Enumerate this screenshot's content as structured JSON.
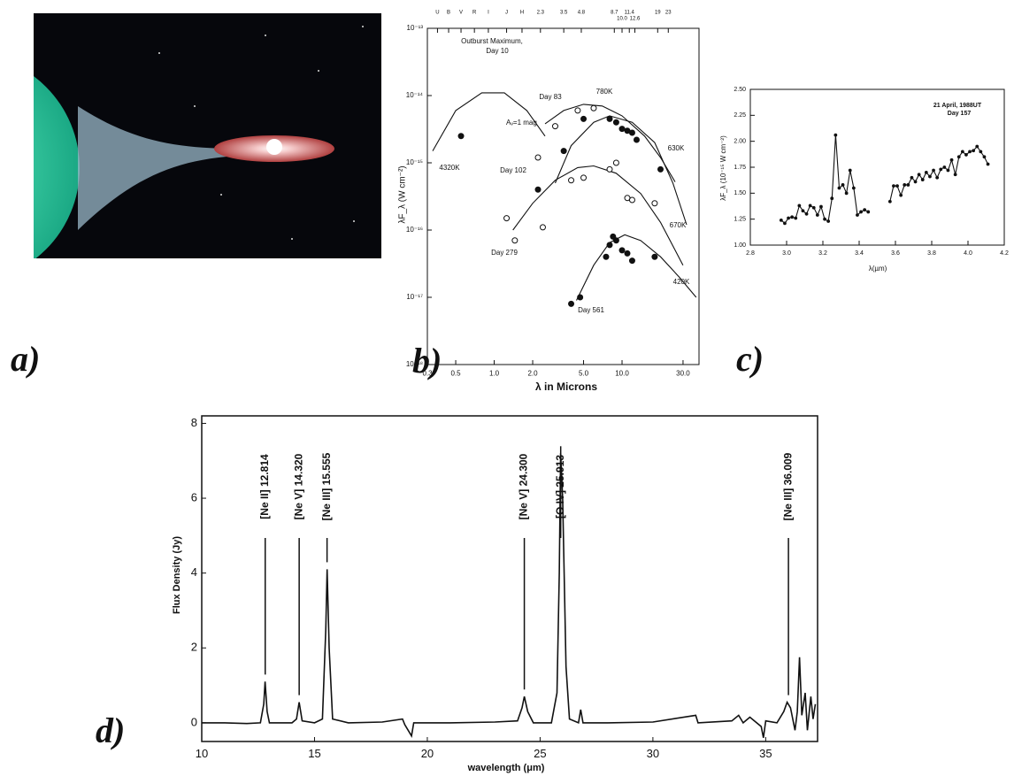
{
  "panel_labels": [
    "a)",
    "b)",
    "c)",
    "d)"
  ],
  "chart_data": [
    {
      "type": "scatter",
      "xscale": "log",
      "yscale": "log",
      "xlabel": "λ in Microns",
      "ylabel": "λF_λ (W cm⁻²)",
      "xlim": [
        0.3,
        40
      ],
      "ylim": [
        1e-18,
        1e-13
      ],
      "xticks": [
        0.3,
        0.5,
        {
          "value": 1,
          "label": "1.0"
        },
        {
          "value": 2,
          "label": "2.0"
        },
        {
          "value": 5,
          "label": "5.0"
        },
        {
          "value": 10,
          "label": "10.0"
        },
        {
          "value": 30,
          "label": "30.0"
        }
      ],
      "yticks": [
        {
          "value": 1e-18,
          "label": "10⁻¹⁸"
        },
        {
          "value": 1e-17,
          "label": "10⁻¹⁷"
        },
        {
          "value": 1e-16,
          "label": "10⁻¹⁶"
        },
        {
          "value": 1e-15,
          "label": "10⁻¹⁵"
        },
        {
          "value": 1e-14,
          "label": "10⁻¹⁴"
        },
        {
          "value": 1e-13,
          "label": "10⁻¹³"
        }
      ],
      "x2ticks": [
        {
          "value": 0.36,
          "label": "U"
        },
        {
          "value": 0.44,
          "label": "B"
        },
        {
          "value": 0.55,
          "label": "V"
        },
        {
          "value": 0.7,
          "label": "R"
        },
        {
          "value": 0.9,
          "label": "I"
        },
        {
          "value": 1.25,
          "label": "J"
        },
        {
          "value": 1.65,
          "label": "H"
        },
        2.3,
        3.5,
        4.8,
        8.7,
        {
          "value": 10,
          "label": "10.0"
        },
        11.4,
        12.6,
        19,
        23
      ],
      "annotations": [
        "Outburst Maximum,",
        "Day 10",
        "Day 83",
        "780K",
        "Aᵥ=1 mag",
        "4320K",
        "Day 102",
        "630K",
        "670K",
        "Day 279",
        "420K",
        "Day 561"
      ],
      "series": [
        {
          "marker": "none",
          "color": "#111",
          "x": [
            0.33,
            0.5,
            0.8,
            1.2,
            1.8,
            2.5
          ],
          "values": [
            1.5e-15,
            6e-15,
            1.1e-14,
            1.1e-14,
            6e-15,
            2.5e-15
          ]
        },
        {
          "marker": "none",
          "color": "#111",
          "x": [
            2.5,
            3.5,
            5,
            7,
            10,
            15,
            20,
            26
          ],
          "values": [
            3.8e-15,
            6e-15,
            7.4e-15,
            7e-15,
            5e-15,
            2.5e-15,
            1.2e-15,
            5.2e-16
          ]
        },
        {
          "marker": "none",
          "color": "#111",
          "x": [
            3,
            4,
            6,
            8,
            12,
            18,
            25,
            32
          ],
          "values": [
            5e-16,
            1.8e-15,
            4e-15,
            5e-15,
            4e-15,
            2e-15,
            5e-16,
            1.2e-16
          ]
        },
        {
          "marker": "none",
          "color": "#111",
          "x": [
            1.4,
            2,
            3,
            4.5,
            6,
            9,
            14,
            20,
            30
          ],
          "values": [
            1e-16,
            2.5e-16,
            5.5e-16,
            8.5e-16,
            9e-16,
            7e-16,
            3.5e-16,
            1.3e-16,
            3e-17
          ]
        },
        {
          "marker": "none",
          "color": "#111",
          "x": [
            4.4,
            6,
            8,
            10.5,
            14,
            20,
            28,
            38
          ],
          "values": [
            9e-18,
            3e-17,
            6.5e-17,
            8.5e-17,
            7e-17,
            4e-17,
            2e-17,
            1e-17
          ]
        },
        {
          "marker": "filled",
          "color": "#111",
          "x": [
            0.55
          ],
          "values": [
            2.5e-15
          ]
        },
        {
          "marker": "open",
          "color": "#111",
          "x": [
            2.2,
            3,
            4.5,
            6
          ],
          "values": [
            1.2e-15,
            3.5e-15,
            6e-15,
            6.5e-15
          ]
        },
        {
          "marker": "filled",
          "color": "#111",
          "x": [
            2.2,
            3.5,
            5,
            8,
            9,
            10,
            11,
            12,
            13,
            20
          ],
          "values": [
            4e-16,
            1.5e-15,
            4.5e-15,
            4.5e-15,
            4e-15,
            3.2e-15,
            3e-15,
            2.8e-15,
            2.2e-15,
            8e-16
          ]
        },
        {
          "marker": "open",
          "color": "#111",
          "x": [
            1.25,
            1.45,
            2.4,
            4,
            5,
            8,
            9,
            11,
            12,
            18
          ],
          "values": [
            1.5e-16,
            7e-17,
            1.1e-16,
            5.5e-16,
            6e-16,
            8e-16,
            1e-15,
            3e-16,
            2.8e-16,
            2.5e-16
          ]
        },
        {
          "marker": "filled",
          "color": "#111",
          "x": [
            4,
            4.7,
            7.5,
            8,
            8.5,
            9,
            10,
            11,
            12,
            18
          ],
          "values": [
            8e-18,
            1e-17,
            4e-17,
            6e-17,
            8e-17,
            7e-17,
            5e-17,
            4.5e-17,
            3.5e-17,
            4e-17
          ]
        }
      ]
    },
    {
      "type": "line",
      "xlabel": "λ(µm)",
      "ylabel": "λF_λ (10⁻¹⁵ W cm⁻²)",
      "xlim": [
        2.8,
        4.2
      ],
      "ylim": [
        1,
        2.5
      ],
      "xticks": [
        2.8,
        {
          "value": 3,
          "label": "3.0"
        },
        3.2,
        3.4,
        3.6,
        3.8,
        {
          "value": 4,
          "label": "4.0"
        },
        4.2
      ],
      "yticks": [
        {
          "value": 1,
          "label": "1.00"
        },
        1.25,
        {
          "value": 1.5,
          "label": "1.50"
        },
        1.75,
        {
          "value": 2,
          "label": "2.00"
        },
        2.25,
        {
          "value": 2.5,
          "label": "2.50"
        }
      ],
      "annotations": [
        "21 April, 1988UT",
        "Day 157"
      ],
      "x": [
        2.97,
        2.99,
        3.01,
        3.03,
        3.05,
        3.07,
        3.09,
        3.11,
        3.13,
        3.15,
        3.17,
        3.19,
        3.21,
        3.23,
        3.25,
        3.27,
        3.29,
        3.31,
        3.33,
        3.35,
        3.37,
        3.39,
        3.41,
        3.43,
        3.45,
        null,
        3.57,
        3.59,
        3.61,
        3.63,
        3.65,
        3.67,
        3.69,
        3.71,
        3.73,
        3.75,
        3.77,
        3.79,
        3.81,
        3.83,
        3.85,
        3.87,
        3.89,
        3.91,
        3.93,
        3.95,
        3.97,
        3.99,
        4.01,
        4.03,
        4.05,
        4.07,
        4.09,
        4.11
      ],
      "series": [
        {
          "marker": "filled",
          "color": "#111",
          "values": [
            1.24,
            1.21,
            1.26,
            1.27,
            1.26,
            1.38,
            1.33,
            1.3,
            1.38,
            1.36,
            1.29,
            1.37,
            1.25,
            1.23,
            1.45,
            2.06,
            1.55,
            1.58,
            1.5,
            1.72,
            1.55,
            1.29,
            1.32,
            1.34,
            1.32,
            null,
            1.42,
            1.57,
            1.57,
            1.48,
            1.58,
            1.58,
            1.65,
            1.61,
            1.68,
            1.63,
            1.7,
            1.66,
            1.72,
            1.65,
            1.73,
            1.75,
            1.72,
            1.82,
            1.68,
            1.85,
            1.9,
            1.87,
            1.9,
            1.91,
            1.95,
            1.9,
            1.85,
            1.78
          ]
        }
      ]
    },
    {
      "type": "line",
      "xlabel": "wavelength (μm)",
      "ylabel": "Flux Density (Jy)",
      "xlim": [
        10,
        37.3
      ],
      "ylim": [
        -0.5,
        8.2
      ],
      "xticks": [
        10,
        15,
        20,
        25,
        30,
        35
      ],
      "yticks": [
        0,
        2,
        4,
        6,
        8
      ],
      "lines": [
        {
          "label": "[Ne II]  12.814",
          "value": 12.814
        },
        {
          "label": "[Ne V]  14.320",
          "value": 14.32
        },
        {
          "label": "[Ne III]  15.555",
          "value": 15.555
        },
        {
          "label": "[Ne V]  24.300",
          "value": 24.3
        },
        {
          "label": "[O IV]  25.913",
          "value": 25.913
        },
        {
          "label": "[Ne III]  36.009",
          "value": 36.009
        }
      ],
      "x": [
        10,
        11,
        12,
        12.6,
        12.75,
        12.81,
        12.9,
        13,
        14,
        14.2,
        14.32,
        14.45,
        15,
        15.35,
        15.5,
        15.56,
        15.65,
        15.8,
        16.5,
        18,
        18.9,
        19,
        19.3,
        19.4,
        21,
        23,
        24,
        24.2,
        24.3,
        24.45,
        24.7,
        25.5,
        25.75,
        25.85,
        25.91,
        26,
        26.15,
        26.3,
        26.7,
        26.8,
        26.9,
        28,
        30,
        31.9,
        32,
        33.5,
        33.8,
        34,
        34.3,
        34.8,
        34.9,
        35,
        35.5,
        35.8,
        35.95,
        36.1,
        36.3,
        36.4,
        36.5,
        36.6,
        36.75,
        36.85,
        37,
        37.1,
        37.2
      ],
      "series": [
        {
          "marker": "none",
          "color": "#111",
          "values": [
            0,
            0,
            -0.02,
            0,
            0.5,
            1.1,
            0.3,
            0,
            0,
            0.1,
            0.55,
            0.05,
            0,
            0.1,
            2.5,
            4.1,
            2,
            0.1,
            0,
            0.02,
            0.1,
            -0.05,
            -0.35,
            0,
            0,
            0.02,
            0.05,
            0.4,
            0.7,
            0.3,
            0,
            0,
            0.8,
            4,
            7.2,
            6,
            1.5,
            0.1,
            0,
            0.35,
            0,
            0,
            0.02,
            0.2,
            0,
            0.05,
            0.2,
            0,
            0.15,
            -0.1,
            -0.4,
            0.05,
            0,
            0.3,
            0.55,
            0.4,
            -0.2,
            0.3,
            1.75,
            0.2,
            0.8,
            -0.2,
            0.7,
            0.1,
            0.5
          ]
        }
      ]
    }
  ]
}
